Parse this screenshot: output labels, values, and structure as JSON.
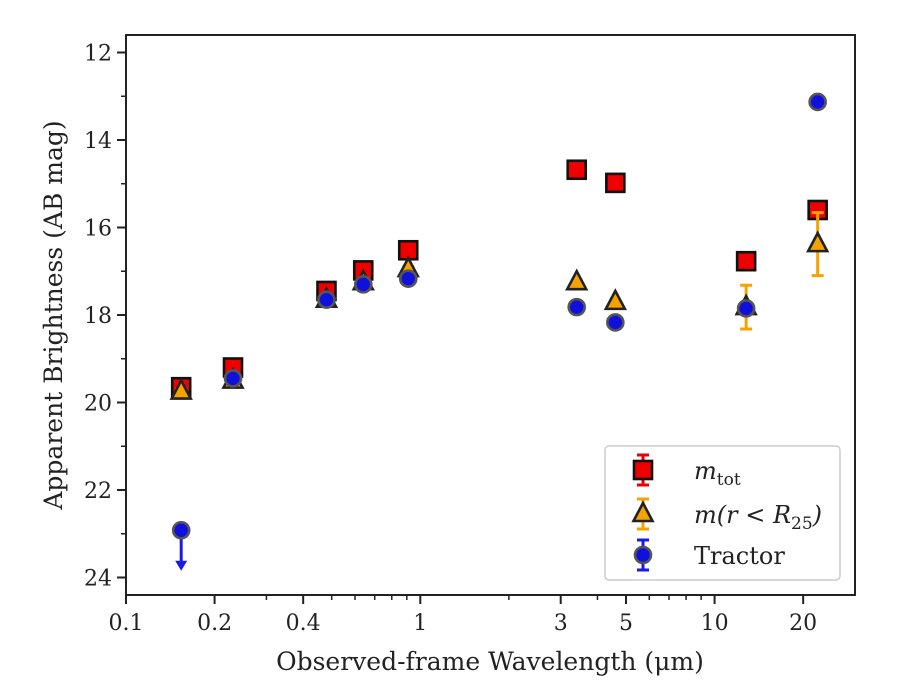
{
  "chart_data": {
    "type": "scatter",
    "title": "",
    "xlabel": "Observed-frame Wavelength (μm)",
    "ylabel": "Apparent Brightness (AB mag)",
    "xscale": "log",
    "xlim": [
      0.1,
      30
    ],
    "ylim": [
      24.4,
      11.6
    ],
    "y_inverted": true,
    "xticks": [
      0.1,
      0.2,
      0.4,
      1,
      3,
      5,
      10,
      20
    ],
    "xtick_labels": [
      "0.1",
      "0.2",
      "0.4",
      "1",
      "3",
      "5",
      "10",
      "20"
    ],
    "yticks": [
      12,
      14,
      16,
      18,
      20,
      22,
      24
    ],
    "ytick_labels": [
      "12",
      "14",
      "16",
      "18",
      "20",
      "22",
      "24"
    ],
    "grid": false,
    "legend_position": "bottom-right",
    "series": [
      {
        "name": "m_tot",
        "legend_main": "m",
        "legend_sub": "tot",
        "marker": "square",
        "color": "#ee0000",
        "errcolor": "#ee0000",
        "points": [
          {
            "x": 0.154,
            "y": 19.65,
            "err": 0.05
          },
          {
            "x": 0.231,
            "y": 19.2,
            "err": 0.05
          },
          {
            "x": 0.48,
            "y": 17.45,
            "err": 0.05
          },
          {
            "x": 0.64,
            "y": 16.98,
            "err": 0.05
          },
          {
            "x": 0.91,
            "y": 16.52,
            "err": 0.05
          },
          {
            "x": 3.4,
            "y": 14.68,
            "err": 0.03
          },
          {
            "x": 4.6,
            "y": 14.98,
            "err": 0.03
          },
          {
            "x": 12.8,
            "y": 16.77,
            "err": 0.05
          },
          {
            "x": 22.4,
            "y": 15.6,
            "err": 0.05
          }
        ]
      },
      {
        "name": "m(r < R25)",
        "legend_main": "m(r < R",
        "legend_sub": "25",
        "legend_tail": ")",
        "marker": "triangle",
        "color": "#f5a300",
        "errcolor": "#f5a300",
        "points": [
          {
            "x": 0.154,
            "y": 19.75,
            "err": 0.05
          },
          {
            "x": 0.231,
            "y": 19.5,
            "err": 0.05
          },
          {
            "x": 0.48,
            "y": 17.65,
            "err": 0.05
          },
          {
            "x": 0.64,
            "y": 17.25,
            "err": 0.05
          },
          {
            "x": 0.91,
            "y": 16.95,
            "err": 0.05
          },
          {
            "x": 3.4,
            "y": 17.25,
            "err": 0.03
          },
          {
            "x": 4.6,
            "y": 17.7,
            "err": 0.03
          },
          {
            "x": 12.8,
            "y": 17.82,
            "err": 0.5
          },
          {
            "x": 22.4,
            "y": 16.38,
            "err": 0.72
          }
        ]
      },
      {
        "name": "Tractor",
        "legend_main": "Tractor",
        "marker": "circle",
        "color": "#1010dd",
        "errcolor": "#1a1ae6",
        "points": [
          {
            "x": 0.154,
            "y": 22.92,
            "err": 0,
            "upper_limit": true,
            "arrow_to": 23.8
          },
          {
            "x": 0.231,
            "y": 19.45,
            "err": 0.05
          },
          {
            "x": 0.48,
            "y": 17.65,
            "err": 0.05
          },
          {
            "x": 0.64,
            "y": 17.3,
            "err": 0.05
          },
          {
            "x": 0.91,
            "y": 17.17,
            "err": 0.05
          },
          {
            "x": 3.4,
            "y": 17.82,
            "err": 0.03
          },
          {
            "x": 4.6,
            "y": 18.17,
            "err": 0.03
          },
          {
            "x": 12.8,
            "y": 17.85,
            "err": 0.1
          },
          {
            "x": 22.4,
            "y": 13.13,
            "err": 0.03
          }
        ]
      }
    ]
  }
}
